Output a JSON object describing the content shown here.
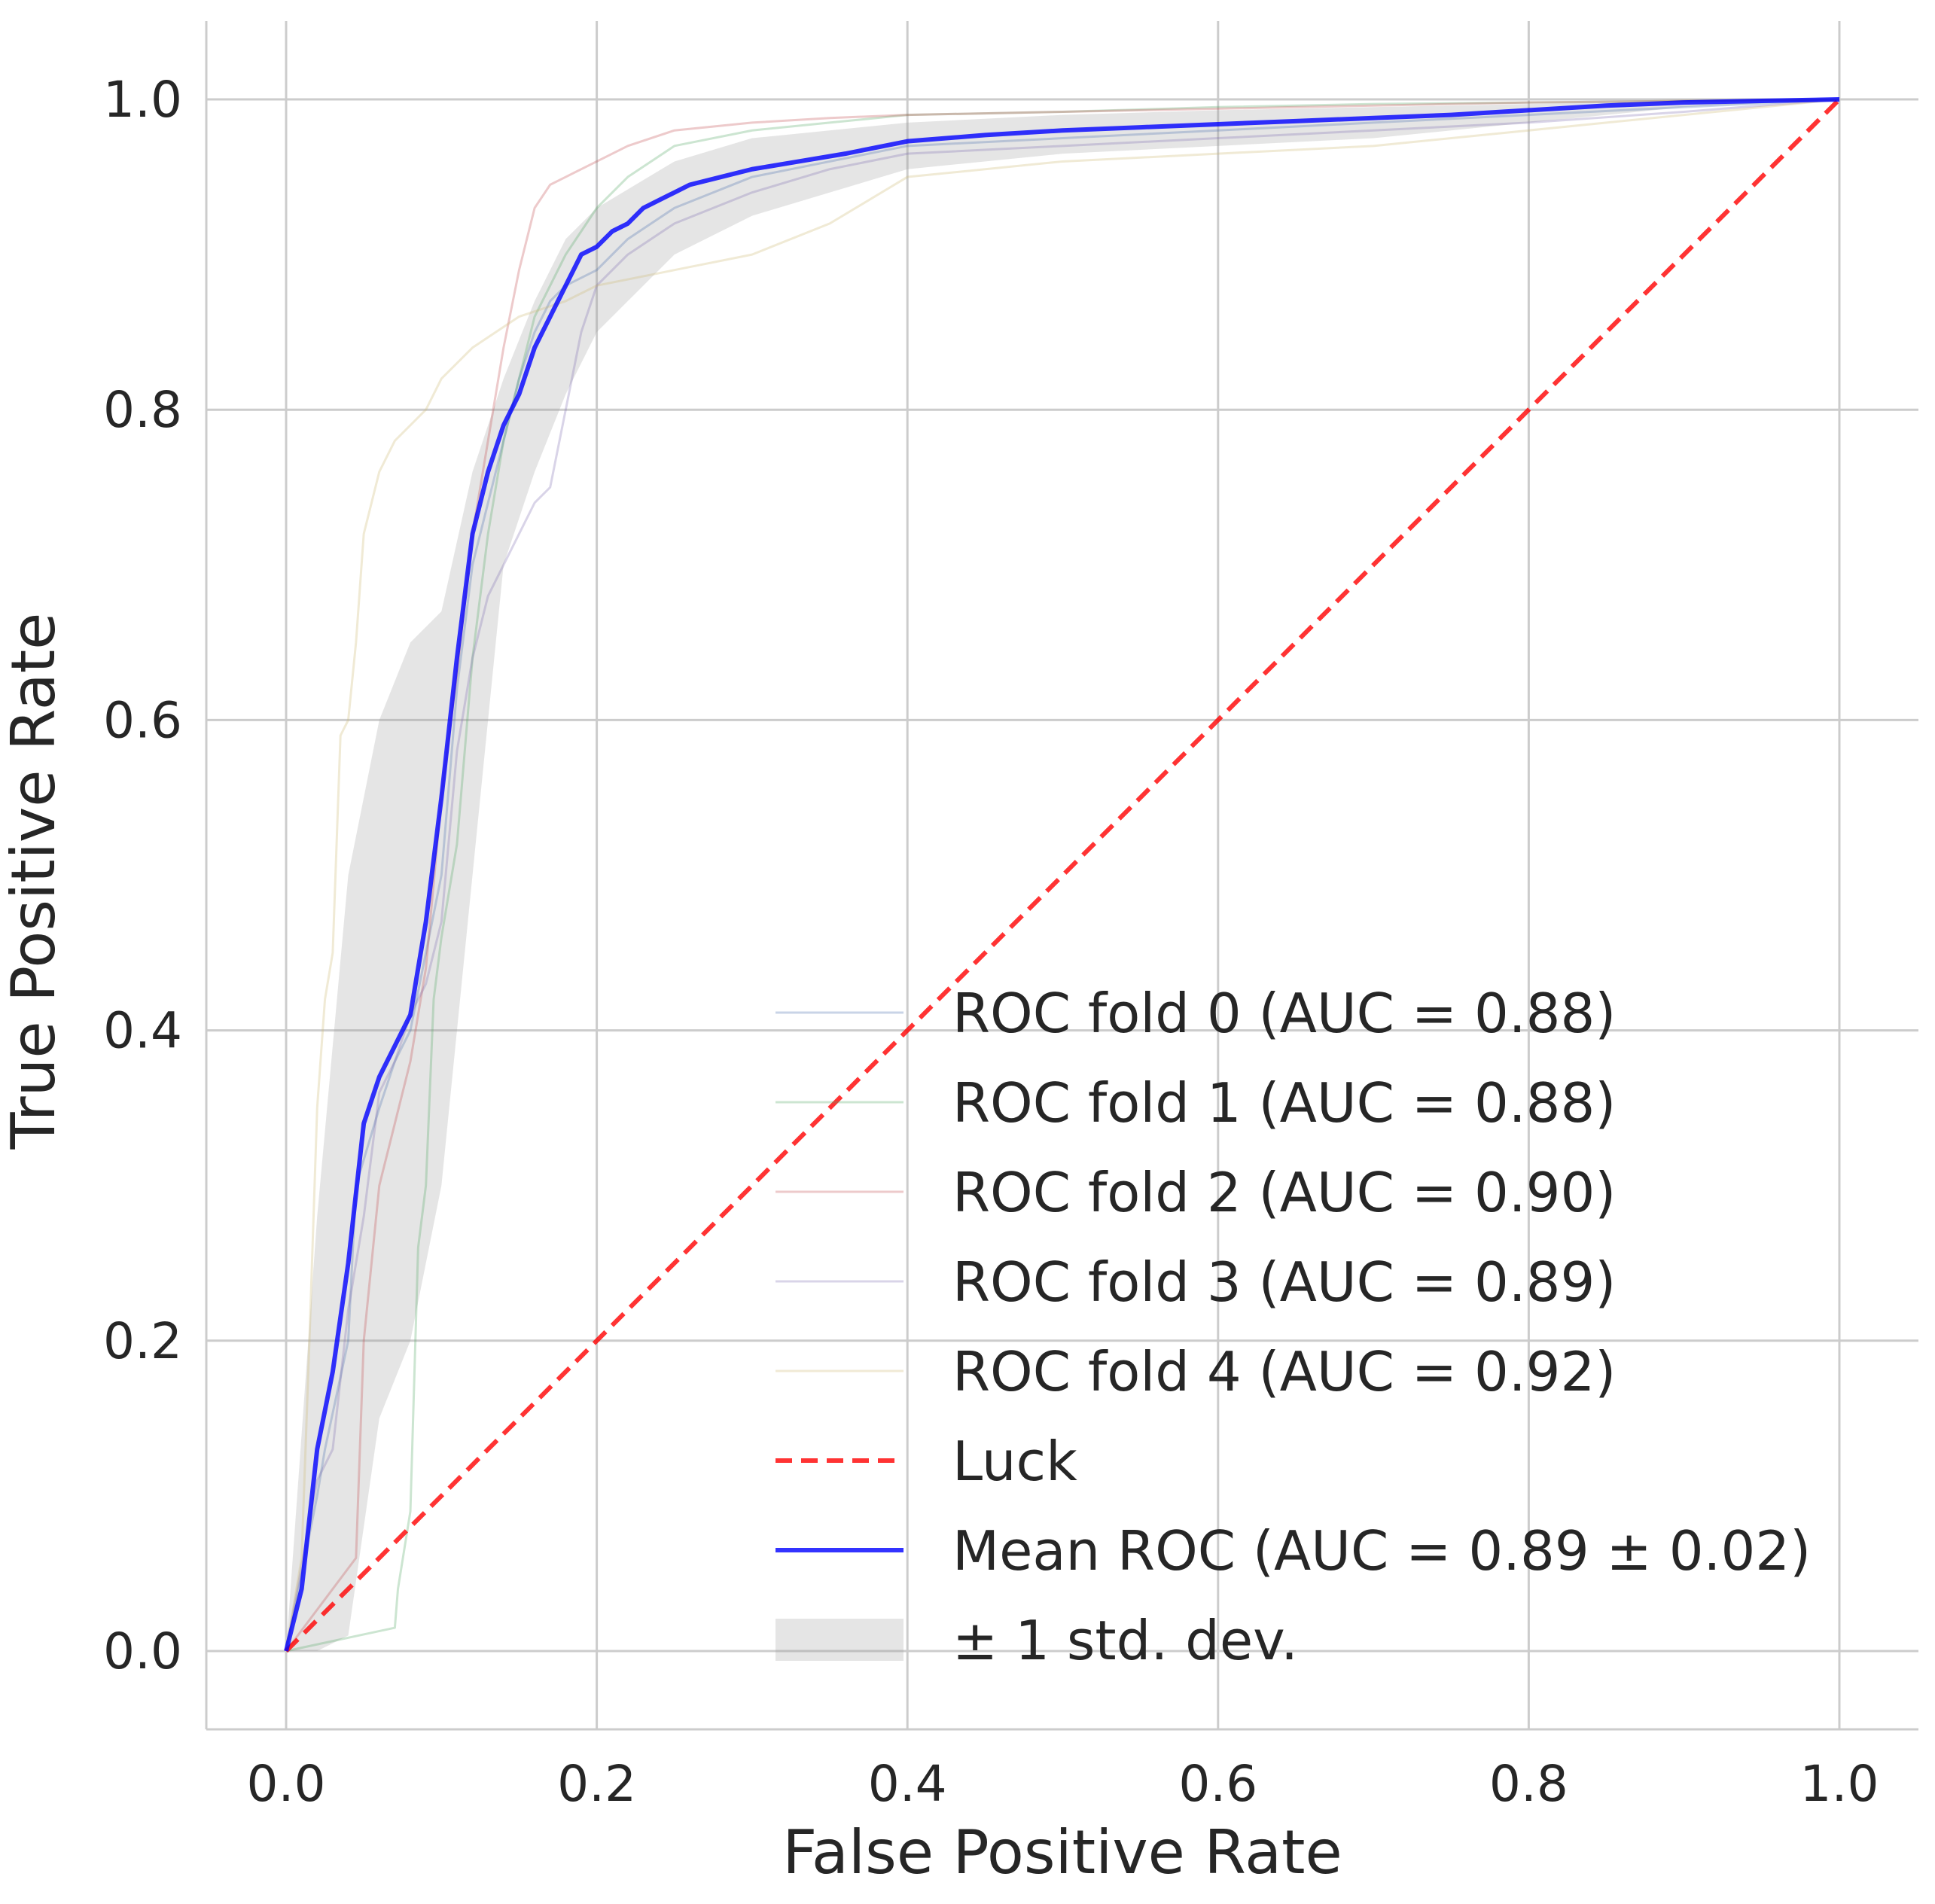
{
  "chart_data": {
    "type": "line",
    "xlabel": "False Positive Rate",
    "ylabel": "True Positive Rate",
    "xlim": [
      -0.05,
      1.05
    ],
    "ylim": [
      -0.05,
      1.05
    ],
    "xticks": [
      "0.0",
      "0.2",
      "0.4",
      "0.6",
      "0.8",
      "1.0"
    ],
    "yticks": [
      "0.0",
      "0.2",
      "0.4",
      "0.6",
      "0.8",
      "1.0"
    ],
    "grid": true,
    "legend_placement": "lower-right",
    "series": [
      {
        "name": "ROC fold 0 (AUC = 0.88)",
        "color": "#4c72b0",
        "x": [
          0,
          0.02,
          0.025,
          0.04,
          0.045,
          0.06,
          0.07,
          0.08,
          0.09,
          0.1,
          0.11,
          0.12,
          0.13,
          0.14,
          0.15,
          0.16,
          0.17,
          0.18,
          0.2,
          0.22,
          0.25,
          0.3,
          0.35,
          0.4,
          0.5,
          0.6,
          0.7,
          0.8,
          0.9,
          1.0
        ],
        "y": [
          0,
          0.1,
          0.13,
          0.2,
          0.3,
          0.35,
          0.38,
          0.4,
          0.45,
          0.5,
          0.62,
          0.7,
          0.74,
          0.78,
          0.82,
          0.85,
          0.87,
          0.88,
          0.89,
          0.91,
          0.93,
          0.95,
          0.96,
          0.97,
          0.975,
          0.98,
          0.985,
          0.99,
          0.995,
          1.0
        ]
      },
      {
        "name": "ROC fold 1 (AUC = 0.88)",
        "color": "#55a868",
        "x": [
          0,
          0.07,
          0.072,
          0.08,
          0.085,
          0.09,
          0.095,
          0.1,
          0.11,
          0.12,
          0.13,
          0.14,
          0.15,
          0.16,
          0.18,
          0.2,
          0.22,
          0.25,
          0.3,
          0.35,
          0.4,
          0.5,
          0.6,
          0.7,
          0.8,
          0.9,
          1.0
        ],
        "y": [
          0,
          0.015,
          0.04,
          0.09,
          0.26,
          0.3,
          0.42,
          0.46,
          0.52,
          0.64,
          0.72,
          0.78,
          0.82,
          0.86,
          0.9,
          0.93,
          0.95,
          0.97,
          0.98,
          0.985,
          0.99,
          0.992,
          0.995,
          0.997,
          0.998,
          0.999,
          1.0
        ]
      },
      {
        "name": "ROC fold 2 (AUC = 0.90)",
        "color": "#c44e52",
        "x": [
          0,
          0.045,
          0.05,
          0.06,
          0.07,
          0.08,
          0.09,
          0.1,
          0.11,
          0.12,
          0.13,
          0.14,
          0.15,
          0.16,
          0.17,
          0.18,
          0.2,
          0.22,
          0.25,
          0.3,
          0.35,
          0.4,
          0.5,
          0.6,
          0.7,
          0.8,
          0.9,
          1.0
        ],
        "y": [
          0,
          0.06,
          0.2,
          0.3,
          0.34,
          0.38,
          0.44,
          0.55,
          0.63,
          0.72,
          0.78,
          0.84,
          0.89,
          0.93,
          0.945,
          0.95,
          0.96,
          0.97,
          0.98,
          0.985,
          0.988,
          0.99,
          0.992,
          0.994,
          0.996,
          0.998,
          0.999,
          1.0
        ]
      },
      {
        "name": "ROC fold 3 (AUC = 0.89)",
        "color": "#8172b2",
        "x": [
          0,
          0.02,
          0.03,
          0.04,
          0.05,
          0.06,
          0.07,
          0.08,
          0.09,
          0.1,
          0.11,
          0.12,
          0.13,
          0.14,
          0.15,
          0.16,
          0.17,
          0.18,
          0.19,
          0.2,
          0.22,
          0.25,
          0.3,
          0.35,
          0.4,
          0.5,
          0.6,
          0.7,
          0.8,
          0.9,
          1.0
        ],
        "y": [
          0,
          0.11,
          0.13,
          0.22,
          0.28,
          0.36,
          0.38,
          0.41,
          0.43,
          0.47,
          0.58,
          0.64,
          0.68,
          0.7,
          0.72,
          0.74,
          0.75,
          0.8,
          0.85,
          0.88,
          0.9,
          0.92,
          0.94,
          0.955,
          0.965,
          0.97,
          0.975,
          0.98,
          0.985,
          0.992,
          1.0
        ]
      },
      {
        "name": "ROC fold 4 (AUC = 0.92)",
        "color": "#ccb974",
        "x": [
          0,
          0.01,
          0.015,
          0.02,
          0.025,
          0.03,
          0.035,
          0.04,
          0.045,
          0.05,
          0.06,
          0.07,
          0.08,
          0.09,
          0.1,
          0.12,
          0.15,
          0.18,
          0.2,
          0.25,
          0.3,
          0.35,
          0.4,
          0.5,
          0.6,
          0.7,
          0.8,
          0.9,
          1.0
        ],
        "y": [
          0,
          0.06,
          0.2,
          0.35,
          0.42,
          0.45,
          0.59,
          0.6,
          0.65,
          0.72,
          0.76,
          0.78,
          0.79,
          0.8,
          0.82,
          0.84,
          0.86,
          0.87,
          0.88,
          0.89,
          0.9,
          0.92,
          0.95,
          0.96,
          0.965,
          0.97,
          0.98,
          0.99,
          1.0
        ]
      },
      {
        "name": "Luck",
        "color": "#ff0000",
        "dash": true,
        "x": [
          0,
          1
        ],
        "y": [
          0,
          1
        ]
      },
      {
        "name": "Mean ROC (AUC = 0.89 ± 0.02)",
        "color": "#0000ff",
        "x": [
          0,
          0.01,
          0.02,
          0.03,
          0.04,
          0.05,
          0.06,
          0.07,
          0.08,
          0.09,
          0.1,
          0.11,
          0.12,
          0.13,
          0.14,
          0.15,
          0.16,
          0.17,
          0.18,
          0.19,
          0.2,
          0.21,
          0.22,
          0.23,
          0.24,
          0.25,
          0.26,
          0.28,
          0.3,
          0.33,
          0.36,
          0.4,
          0.45,
          0.5,
          0.55,
          0.6,
          0.65,
          0.7,
          0.75,
          0.8,
          0.85,
          0.9,
          0.95,
          1.0
        ],
        "y": [
          0,
          0.04,
          0.13,
          0.18,
          0.25,
          0.34,
          0.37,
          0.39,
          0.41,
          0.47,
          0.55,
          0.64,
          0.72,
          0.76,
          0.79,
          0.81,
          0.84,
          0.86,
          0.88,
          0.9,
          0.905,
          0.915,
          0.92,
          0.93,
          0.935,
          0.94,
          0.945,
          0.95,
          0.955,
          0.96,
          0.965,
          0.973,
          0.977,
          0.98,
          0.982,
          0.984,
          0.986,
          0.988,
          0.99,
          0.993,
          0.996,
          0.998,
          0.999,
          1.0
        ]
      }
    ],
    "std_band": {
      "name": "± 1 std. dev.",
      "color": "#999999",
      "x": [
        0,
        0.02,
        0.04,
        0.06,
        0.08,
        0.1,
        0.12,
        0.14,
        0.16,
        0.18,
        0.2,
        0.25,
        0.3,
        0.4,
        0.5,
        0.6,
        0.7,
        0.8,
        0.9,
        1.0
      ],
      "upper": [
        0,
        0.28,
        0.5,
        0.6,
        0.65,
        0.67,
        0.76,
        0.82,
        0.87,
        0.91,
        0.93,
        0.96,
        0.975,
        0.985,
        0.99,
        0.993,
        0.995,
        0.997,
        0.999,
        1.0
      ],
      "lower": [
        0,
        0.0,
        0.01,
        0.15,
        0.2,
        0.3,
        0.5,
        0.7,
        0.76,
        0.81,
        0.85,
        0.9,
        0.925,
        0.955,
        0.965,
        0.97,
        0.975,
        0.985,
        0.995,
        1.0
      ]
    }
  }
}
